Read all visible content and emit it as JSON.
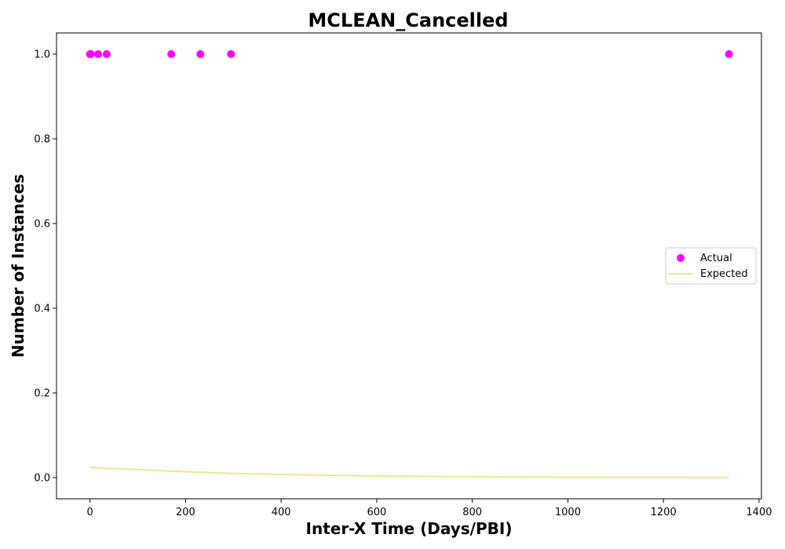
{
  "chart_data": {
    "type": "scatter",
    "title": "MCLEAN_Cancelled",
    "xlabel": "Inter-X Time (Days/PBI)",
    "ylabel": "Number of Instances",
    "xlim": [
      -70,
      1405
    ],
    "ylim": [
      -0.05,
      1.05
    ],
    "xticks": [
      0,
      200,
      400,
      600,
      800,
      1000,
      1200,
      1400
    ],
    "xtick_labels": [
      "0",
      "200",
      "400",
      "600",
      "800",
      "1000",
      "1200",
      "1400"
    ],
    "yticks": [
      0.0,
      0.2,
      0.4,
      0.6,
      0.8,
      1.0
    ],
    "ytick_labels": [
      "0.0",
      "0.2",
      "0.4",
      "0.6",
      "0.8",
      "1.0"
    ],
    "grid": false,
    "legend_position": "center-right",
    "series": [
      {
        "name": "Actual",
        "kind": "scatter",
        "color": "#ff00ff",
        "points": [
          {
            "x": 0,
            "y": 1
          },
          {
            "x": 2,
            "y": 1
          },
          {
            "x": 17,
            "y": 1
          },
          {
            "x": 35,
            "y": 1
          },
          {
            "x": 170,
            "y": 1
          },
          {
            "x": 231,
            "y": 1
          },
          {
            "x": 295,
            "y": 1
          },
          {
            "x": 1337,
            "y": 1
          }
        ]
      },
      {
        "name": "Expected",
        "kind": "line",
        "color": "#f0e68c",
        "points": [
          {
            "x": 0,
            "y": 0.024
          },
          {
            "x": 100,
            "y": 0.019
          },
          {
            "x": 200,
            "y": 0.014
          },
          {
            "x": 300,
            "y": 0.01
          },
          {
            "x": 400,
            "y": 0.0075
          },
          {
            "x": 500,
            "y": 0.0055
          },
          {
            "x": 600,
            "y": 0.004
          },
          {
            "x": 700,
            "y": 0.003
          },
          {
            "x": 800,
            "y": 0.002
          },
          {
            "x": 900,
            "y": 0.0015
          },
          {
            "x": 1000,
            "y": 0.001
          },
          {
            "x": 1100,
            "y": 0.0008
          },
          {
            "x": 1200,
            "y": 0.0006
          },
          {
            "x": 1337,
            "y": 0.0004
          }
        ]
      }
    ]
  }
}
